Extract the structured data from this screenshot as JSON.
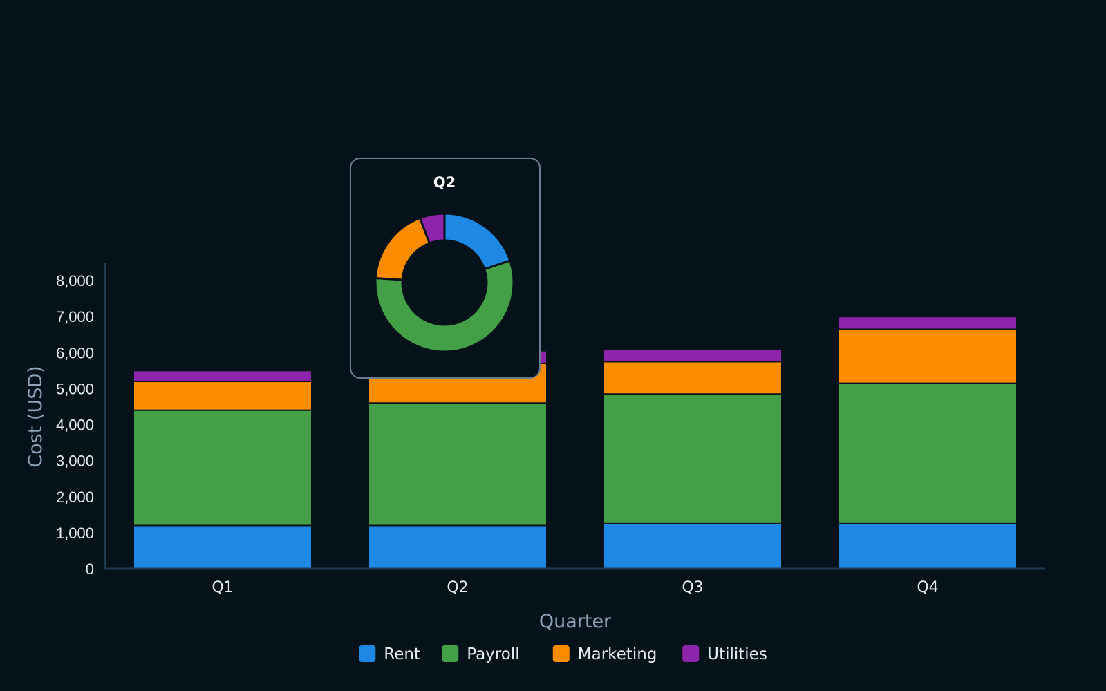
{
  "chart_data": {
    "type": "bar",
    "stacked": true,
    "categories": [
      "Q1",
      "Q2",
      "Q3",
      "Q4"
    ],
    "series": [
      {
        "name": "Rent",
        "color": "#1e88e5",
        "values": [
          1200,
          1200,
          1250,
          1250
        ]
      },
      {
        "name": "Payroll",
        "color": "#43a047",
        "values": [
          3200,
          3400,
          3600,
          3900
        ]
      },
      {
        "name": "Marketing",
        "color": "#fb8c00",
        "values": [
          800,
          1100,
          900,
          1500
        ]
      },
      {
        "name": "Utilities",
        "color": "#8e24aa",
        "values": [
          300,
          350,
          350,
          350
        ]
      }
    ],
    "xlabel": "Quarter",
    "ylabel": "Cost (USD)",
    "ylim": [
      0,
      8500
    ],
    "yticks": [
      0,
      1000,
      2000,
      3000,
      4000,
      5000,
      6000,
      7000,
      8000
    ],
    "grid": false,
    "legend": "bottom-center",
    "tooltip": {
      "title": "Q2",
      "type": "donut",
      "category": "Q2"
    }
  },
  "colors": {
    "background": "#06121a",
    "axis": "#1f3a52",
    "tooltip_bg": "#06121a",
    "tooltip_border": "#6b7f90"
  }
}
